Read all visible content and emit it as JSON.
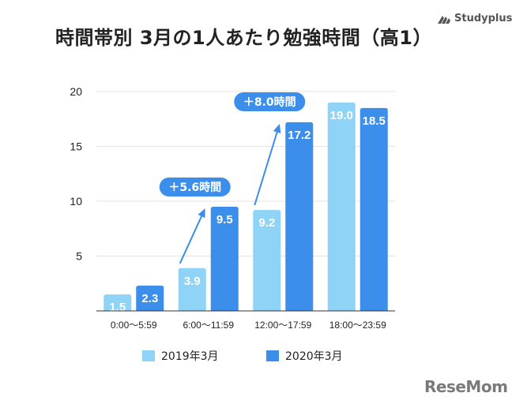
{
  "title": "時間帯別 3月の1人あたり勉強時間（高1）",
  "brand": "Studyplus",
  "watermark": "ReseMom",
  "colors": {
    "series_2019": "#8fd3f7",
    "series_2020": "#3b8eea",
    "callout": "#3b8eea",
    "grid": "#e3e3e3",
    "axis": "#333333"
  },
  "chart_data": {
    "type": "bar",
    "title": "時間帯別 3月の1人あたり勉強時間（高1）",
    "xlabel": "",
    "ylabel": "",
    "categories": [
      "0:00～5:59",
      "6:00～11:59",
      "12:00～17:59",
      "18:00～23:59"
    ],
    "series": [
      {
        "name": "2019年3月",
        "values": [
          1.5,
          3.9,
          9.2,
          19.0
        ],
        "labels": [
          "1.5",
          "3.9",
          "9.2",
          "19.0"
        ]
      },
      {
        "name": "2020年3月",
        "values": [
          2.3,
          9.5,
          17.2,
          18.5
        ],
        "labels": [
          "2.3",
          "9.5",
          "17.2",
          "18.5"
        ]
      }
    ],
    "ylim": [
      0,
      20
    ],
    "yticks": [
      5,
      10,
      15,
      20
    ],
    "grid": true,
    "legend": "bottom",
    "annotations": [
      {
        "text": "＋5.6時間",
        "category": 1
      },
      {
        "text": "＋8.0時間",
        "category": 2
      }
    ]
  }
}
